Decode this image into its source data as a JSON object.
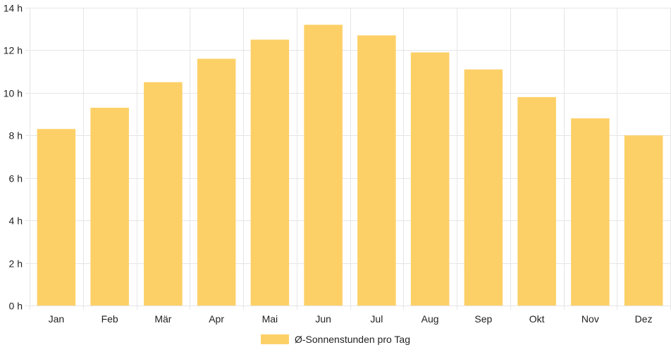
{
  "chart_data": {
    "type": "bar",
    "categories": [
      "Jan",
      "Feb",
      "Mär",
      "Apr",
      "Mai",
      "Jun",
      "Jul",
      "Aug",
      "Sep",
      "Okt",
      "Nov",
      "Dez"
    ],
    "series": [
      {
        "name": "Ø-Sonnenstunden pro Tag",
        "values": [
          8.3,
          9.3,
          10.5,
          11.6,
          12.5,
          13.2,
          12.7,
          11.9,
          11.1,
          9.8,
          8.8,
          8.0
        ]
      }
    ],
    "y_ticks": [
      "0 h",
      "2 h",
      "4 h",
      "6 h",
      "8 h",
      "10 h",
      "12 h",
      "14 h"
    ],
    "ylim": [
      0,
      14
    ],
    "y_tick_step": 2,
    "grid": true,
    "legend_position": "bottom",
    "colors": {
      "bar": "#fdd067",
      "grid": "#e6e6e6",
      "text": "#222222"
    }
  }
}
